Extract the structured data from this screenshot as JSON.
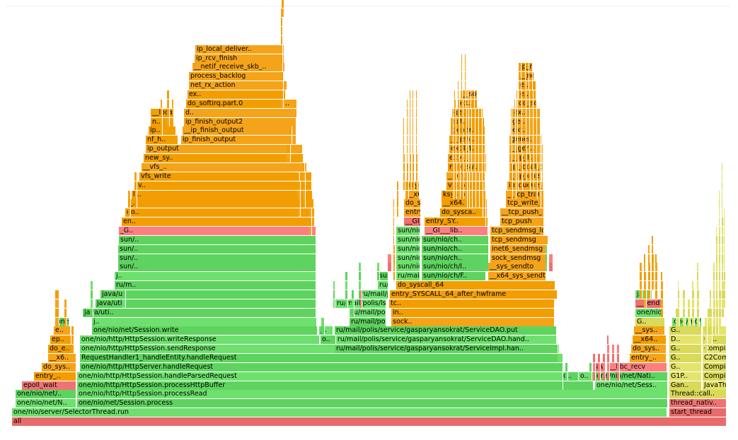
{
  "colors": {
    "root": "#e86b6b",
    "native": "#ff7e7e",
    "java": "#5fd35f",
    "java_light": "#7be07b",
    "kernel": "#f29e00",
    "kernel_light": "#f7b23a",
    "cpp": "#d9d95a",
    "cpp_light": "#ecec7e"
  },
  "frames": [
    {
      "label": "all",
      "color": "root"
    },
    {
      "label": "one/nio/server/SelectorThread.run",
      "color": "java"
    },
    {
      "label": "start_thread",
      "color": "root"
    },
    {
      "label": "one/nio/net/N..",
      "color": "java"
    },
    {
      "label": "one/nio/net/Session.process",
      "color": "java"
    },
    {
      "label": "thread_nativ..",
      "color": "root"
    },
    {
      "label": "one/nio/net/..",
      "color": "java"
    },
    {
      "label": "one/nio/http/HttpSession.processRead",
      "color": "java"
    },
    {
      "label": "Thread::call..",
      "color": "cpp"
    },
    {
      "label": "epoll_wait",
      "color": "root"
    },
    {
      "label": "one/nio/http/HttpSession.processHttpBuffer",
      "color": "java"
    },
    {
      "label": "one/nio/net/Sess..",
      "color": "java"
    },
    {
      "label": "Gan..",
      "color": "cpp"
    },
    {
      "label": "JavaTh..",
      "color": "cpp"
    },
    {
      "label": "entry_..",
      "color": "kernel"
    },
    {
      "label": "one/nio/http/HttpSession.handleParsedRequest",
      "color": "java"
    },
    {
      "label": "o..",
      "color": "java"
    },
    {
      "label": "o..",
      "color": "java"
    },
    {
      "label": "one/nio/net/Nati..",
      "color": "java"
    },
    {
      "label": "G1P..",
      "color": "cpp"
    },
    {
      "label": "Compil..",
      "color": "cpp"
    },
    {
      "label": "do_sys..",
      "color": "kernel"
    },
    {
      "label": "one/nio/http/HttpServer.handleRequest",
      "color": "java"
    },
    {
      "label": "Jav..",
      "color": "native"
    },
    {
      "label": "__libc_recv",
      "color": "native"
    },
    {
      "label": "G..",
      "color": "cpp"
    },
    {
      "label": "Compil..",
      "color": "cpp"
    },
    {
      "label": "__x6..",
      "color": "kernel"
    },
    {
      "label": "RequestHandler1_handleEntity.handleRequest",
      "color": "java"
    },
    {
      "label": "entry_..",
      "color": "kernel"
    },
    {
      "label": "G..",
      "color": "cpp"
    },
    {
      "label": "C2Com..",
      "color": "cpp"
    },
    {
      "label": "do_e..",
      "color": "kernel"
    },
    {
      "label": "one/nio/http/HttpSession.sendResponse",
      "color": "java"
    },
    {
      "label": "ru/mail/polis/service/gasparyansokrat/ServiceImpl.han..",
      "color": "java"
    },
    {
      "label": "do_sys..",
      "color": "kernel"
    },
    {
      "label": "G..",
      "color": "cpp"
    },
    {
      "label": "Compil..",
      "color": "cpp"
    },
    {
      "label": "ep..",
      "color": "kernel"
    },
    {
      "label": "one/nio/http/HttpSession.writeResponse",
      "color": "java"
    },
    {
      "label": "o..",
      "color": "java"
    },
    {
      "label": "ru/mail/polis/service/gasparyansokrat/ServiceDAO.hand..",
      "color": "java"
    },
    {
      "label": "__x64..",
      "color": "kernel"
    },
    {
      "label": "D..",
      "color": "cpp"
    },
    {
      "label": "Co..",
      "color": "cpp"
    },
    {
      "label": "e..",
      "color": "kernel"
    },
    {
      "label": "one/nio/net/Session.write",
      "color": "java"
    },
    {
      "label": "j..",
      "color": "java"
    },
    {
      "label": "ru/mail/polis/service/gasparyansokrat/ServiceDAO.put",
      "color": "java"
    },
    {
      "label": "__sys..",
      "color": "kernel"
    },
    {
      "label": "G..",
      "color": "cpp"
    },
    {
      "label": "P..",
      "color": "cpp"
    },
    {
      "label": "one/nio/net/Session.write",
      "color": "java"
    },
    {
      "label": "j..",
      "color": "java"
    },
    {
      "label": "ru/mail/polis/lsm/artemdrozdov/LsmDAO.upsert",
      "color": "java"
    },
    {
      "label": "sock..",
      "color": "kernel"
    },
    {
      "label": "G..",
      "color": "cpp"
    },
    {
      "label": "one/nio/net/Session$ArrayQueueItem.write",
      "color": "java"
    },
    {
      "label": "java/uti..",
      "color": "java"
    },
    {
      "label": "ru/mail/polis/lsm/artemdrozdov/LsmDAO.f..",
      "color": "java"
    },
    {
      "label": "in..",
      "color": "kernel"
    },
    {
      "label": "one/nio/net/NativeSocket.write",
      "color": "java"
    },
    {
      "label": "java/uti..",
      "color": "java"
    },
    {
      "label": "ru/mail/polis/lsm/artemdrozdov/SSTable..",
      "color": "java"
    },
    {
      "label": "tc..",
      "color": "kernel"
    },
    {
      "label": "__send",
      "color": "native"
    },
    {
      "label": "java/u..",
      "color": "java"
    },
    {
      "label": "ru/mail/polis/lsm/artemdrozdov/SSTable..",
      "color": "java"
    },
    {
      "label": "entry_SYSCALL_64_after_hwframe",
      "color": "kernel"
    },
    {
      "label": "j..",
      "color": "java"
    },
    {
      "label": "ru/m..",
      "color": "java"
    },
    {
      "label": "ru/mail/polis/lsm/artemdrozdo..",
      "color": "java"
    },
    {
      "label": "do_syscall_64",
      "color": "kernel"
    },
    {
      "label": "j..",
      "color": "java"
    },
    {
      "label": "sun/..",
      "color": "java"
    },
    {
      "label": "ru/mail/polis/..",
      "color": "java"
    },
    {
      "label": "sun/nio/ch/F..",
      "color": "java"
    },
    {
      "label": "__x64_sys_sendto",
      "color": "kernel"
    },
    {
      "label": "sun/..",
      "color": "java"
    },
    {
      "label": "sun/nio/ch/Fil..",
      "color": "java"
    },
    {
      "label": "sun/nio/ch/I..",
      "color": "java"
    },
    {
      "label": "__sys_sendto",
      "color": "kernel"
    },
    {
      "label": "sun/..",
      "color": "java"
    },
    {
      "label": "sun/nio/ch/IOU..",
      "color": "java"
    },
    {
      "label": "sun/nio/ch..",
      "color": "java"
    },
    {
      "label": "sock_sendmsg",
      "color": "kernel"
    },
    {
      "label": "sun/..",
      "color": "java"
    },
    {
      "label": "sun/nio/ch/IOU..",
      "color": "java"
    },
    {
      "label": "sun/nio/ch..",
      "color": "java"
    },
    {
      "label": "inet6_sendmsg",
      "color": "kernel"
    },
    {
      "label": "sun/..",
      "color": "java"
    },
    {
      "label": "sun/nio/ch/Fil..",
      "color": "java"
    },
    {
      "label": "sun/nio/ch..",
      "color": "java"
    },
    {
      "label": "tcp_sendmsg",
      "color": "kernel"
    },
    {
      "label": "_G..",
      "color": "native"
    },
    {
      "label": "sun/nio/ch/Fil..",
      "color": "java"
    },
    {
      "label": "__GI___lib..",
      "color": "native"
    },
    {
      "label": "tcp_sendmsg_locked",
      "color": "kernel"
    },
    {
      "label": "en..",
      "color": "kernel"
    },
    {
      "label": "__GI___libc_w..",
      "color": "native"
    },
    {
      "label": "entry_SY..",
      "color": "kernel"
    },
    {
      "label": "tcp_push",
      "color": "kernel"
    },
    {
      "label": "do..",
      "color": "kernel"
    },
    {
      "label": "entry_SYS..",
      "color": "kernel"
    },
    {
      "label": "do_sysca..",
      "color": "kernel"
    },
    {
      "label": "__tcp_push_pending_frames",
      "color": "kernel"
    },
    {
      "label": "_..",
      "color": "kernel"
    },
    {
      "label": "do_syscal..",
      "color": "kernel"
    },
    {
      "label": "__x64..",
      "color": "kernel"
    },
    {
      "label": "tcp_write_xmit",
      "color": "kernel"
    },
    {
      "label": "k..",
      "color": "kernel"
    },
    {
      "label": "__x64_s..",
      "color": "kernel"
    },
    {
      "label": "ksys_w..",
      "color": "kernel"
    },
    {
      "label": "__tcp_transmit_skb",
      "color": "kernel"
    },
    {
      "label": "v..",
      "color": "kernel"
    },
    {
      "label": "ksys_write",
      "color": "kernel"
    },
    {
      "label": "vfs_wr..",
      "color": "kernel"
    },
    {
      "label": "ip_queue_xmit",
      "color": "kernel"
    },
    {
      "label": "vfs_write",
      "color": "kernel"
    },
    {
      "label": "__vfs_..",
      "color": "kernel"
    },
    {
      "label": "__ip_queue_xmit",
      "color": "kernel"
    },
    {
      "label": "__vfs_..",
      "color": "kernel"
    },
    {
      "label": "new_sy..",
      "color": "kernel"
    },
    {
      "label": "ip_local_out",
      "color": "kernel"
    },
    {
      "label": "new_sy..",
      "color": "kernel"
    },
    {
      "label": "ext4_..",
      "color": "kernel"
    },
    {
      "label": "__ip_l..",
      "color": "kernel"
    },
    {
      "label": "ip_output",
      "color": "kernel"
    },
    {
      "label": "ext4_f..",
      "color": "kernel"
    },
    {
      "label": "__gen..",
      "color": "kernel"
    },
    {
      "label": "nf_h..",
      "color": "kernel"
    },
    {
      "label": "ip_finish_output",
      "color": "kernel"
    },
    {
      "label": "__gen..",
      "color": "kernel"
    },
    {
      "label": "gener..",
      "color": "kernel"
    },
    {
      "label": "ip..",
      "color": "kernel"
    },
    {
      "label": "__ip_finish_output",
      "color": "kernel"
    },
    {
      "label": "gener..",
      "color": "kernel"
    },
    {
      "label": "ext..",
      "color": "kernel"
    },
    {
      "label": "n..",
      "color": "kernel"
    },
    {
      "label": "ip_finish_output2",
      "color": "kernel"
    },
    {
      "label": "ext..",
      "color": "kernel"
    },
    {
      "label": "ge..",
      "color": "kernel"
    },
    {
      "label": "__local_bh_enable_ip",
      "color": "kernel"
    },
    {
      "label": "d..",
      "color": "kernel"
    },
    {
      "label": "ge..",
      "color": "kernel"
    },
    {
      "label": "ex..",
      "color": "kernel"
    },
    {
      "label": "do_softirq.part.0",
      "color": "kernel"
    },
    {
      "label": "..",
      "color": "kernel"
    },
    {
      "label": "ex..",
      "color": "kernel"
    },
    {
      "label": "do_softirq_own_stack",
      "color": "kernel"
    },
    {
      "label": "ex..",
      "color": "kernel"
    },
    {
      "label": "__softirqentry_text_s..",
      "color": "kernel"
    },
    {
      "label": "e..",
      "color": "kernel"
    },
    {
      "label": "net_rx_action",
      "color": "kernel"
    },
    {
      "label": "e..",
      "color": "kernel"
    },
    {
      "label": "process_backlog",
      "color": "kernel"
    },
    {
      "label": "__netif_receive_skb",
      "color": "kernel"
    },
    {
      "label": "__netif_receive_skb_..",
      "color": "kernel"
    },
    {
      "label": "ip_rcv",
      "color": "kernel"
    },
    {
      "label": "ip_rcv_finish",
      "color": "kernel"
    },
    {
      "label": "ip_local_deliver",
      "color": "kernel"
    },
    {
      "label": "ip_local_deliver..",
      "color": "kernel"
    }
  ]
}
